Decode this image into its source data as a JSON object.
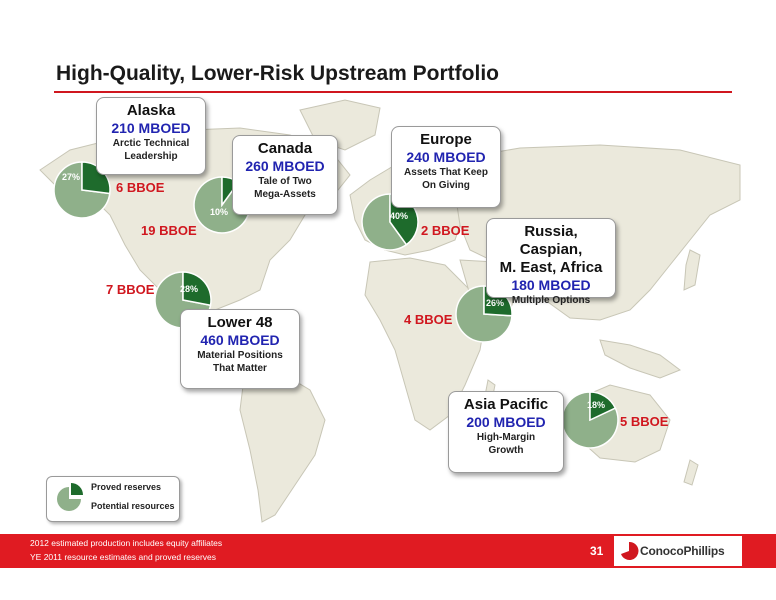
{
  "title": "High-Quality, Lower-Risk Upstream Portfolio",
  "colors": {
    "proved": "#1e6b2c",
    "potential": "#8fb08a",
    "accent_red": "#d0171f",
    "prod_blue": "#2124b0"
  },
  "regions": [
    {
      "name": "Alaska",
      "production": "210 MBOED",
      "desc1": "Arctic Technical",
      "desc2": "Leadership",
      "resources": "6 BBOE",
      "proved_pct_label": "27%",
      "proved_pct": 27
    },
    {
      "name": "Canada",
      "production": "260 MBOED",
      "desc1": "Tale of Two",
      "desc2": "Mega-Assets",
      "resources": "19 BBOE",
      "proved_pct_label": "10%",
      "proved_pct": 10
    },
    {
      "name": "Lower 48",
      "production": "460 MBOED",
      "desc1": "Material Positions",
      "desc2": "That Matter",
      "resources": "7 BBOE",
      "proved_pct_label": "28%",
      "proved_pct": 28
    },
    {
      "name": "Europe",
      "production": "240 MBOED",
      "desc1": "Assets That Keep",
      "desc2": "On Giving",
      "resources": "2 BBOE",
      "proved_pct_label": "40%",
      "proved_pct": 40
    },
    {
      "name1": "Russia, Caspian,",
      "name2": "M. East, Africa",
      "production": "180 MBOED",
      "desc1": "Multiple Options",
      "resources": "4 BBOE",
      "proved_pct_label": "26%",
      "proved_pct": 26
    },
    {
      "name": "Asia Pacific",
      "production": "200 MBOED",
      "desc1": "High-Margin",
      "desc2": "Growth",
      "resources": "5 BBOE",
      "proved_pct_label": "18%",
      "proved_pct": 18
    }
  ],
  "legend": {
    "proved": "Proved reserves",
    "potential": "Potential resources"
  },
  "footer": {
    "note1": "2012 estimated production includes equity affiliates",
    "note2": "YE 2011 resource estimates and proved reserves",
    "page_number": "31",
    "logo_text": "ConocoPhillips"
  }
}
